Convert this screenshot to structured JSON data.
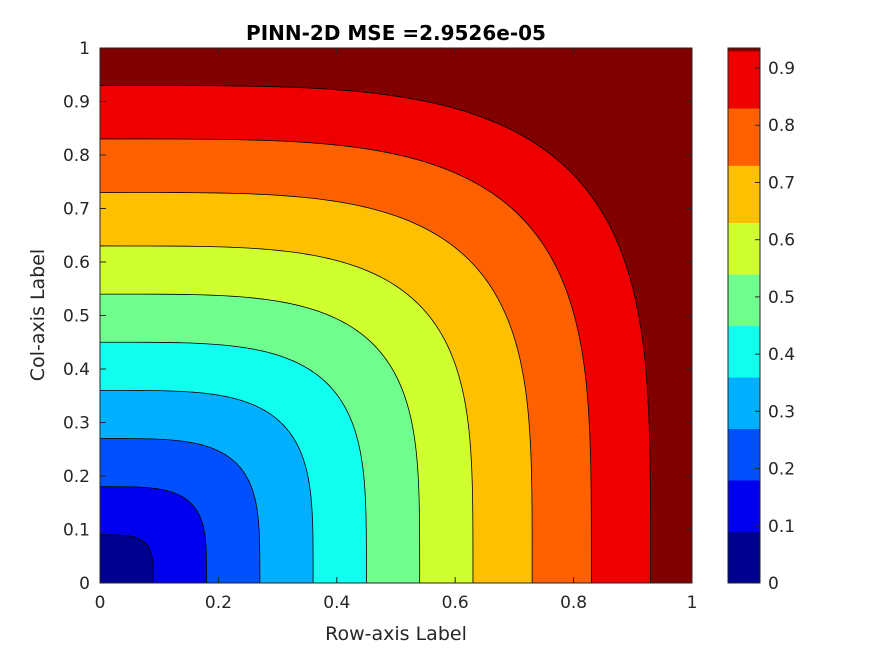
{
  "chart_data": {
    "type": "contour",
    "title": "PINN-2D MSE =2.9526e-05",
    "xlabel": "Row-axis Label",
    "ylabel": "Col-axis Label",
    "xlim": [
      0,
      1
    ],
    "ylim": [
      0,
      1
    ],
    "x_ticks": [
      "0",
      "0.2",
      "0.4",
      "0.6",
      "0.8",
      "1"
    ],
    "y_ticks": [
      "0",
      "0.1",
      "0.2",
      "0.3",
      "0.4",
      "0.5",
      "0.6",
      "0.7",
      "0.8",
      "0.9",
      "1"
    ],
    "colormap": "jet",
    "levels": [
      0,
      0.09,
      0.18,
      0.27,
      0.36,
      0.45,
      0.54,
      0.63,
      0.73,
      0.83,
      0.93,
      0.935
    ],
    "contour_shape_exponent": 4,
    "colorbar": {
      "range": [
        0,
        0.935
      ],
      "ticks": [
        "0",
        "0.1",
        "0.2",
        "0.3",
        "0.4",
        "0.5",
        "0.6",
        "0.7",
        "0.8",
        "0.9"
      ],
      "tick_values": [
        0,
        0.1,
        0.2,
        0.3,
        0.4,
        0.5,
        0.6,
        0.7,
        0.8,
        0.9
      ]
    },
    "band_colors": [
      "#00008f",
      "#0000ee",
      "#0050ff",
      "#00b0ff",
      "#10ffef",
      "#70ff8f",
      "#d0ff30",
      "#ffc000",
      "#ff6000",
      "#ef0000",
      "#800000"
    ]
  }
}
